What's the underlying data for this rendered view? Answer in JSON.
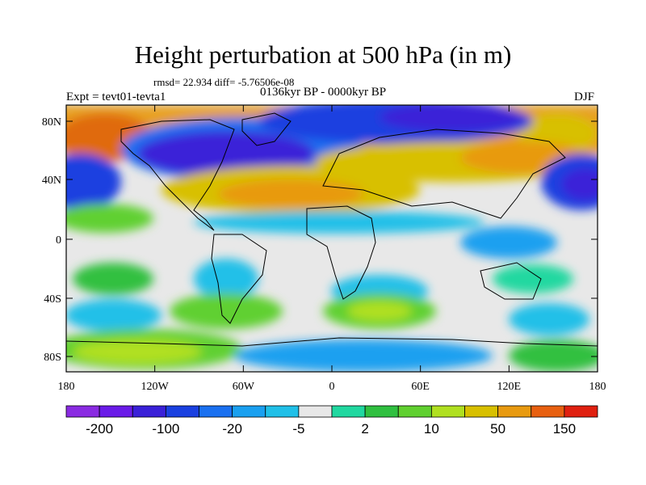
{
  "title": "Height perturbation at 500 hPa (in m)",
  "stats_line": "rmsd= 22.934  diff= -5.76506e-08",
  "period": "0136kyr BP - 0000kyr BP",
  "experiment": "Expt = tevt01-tevta1",
  "season": "DJF",
  "lat_labels": [
    "80N",
    "40N",
    "0",
    "40S",
    "80S"
  ],
  "lon_labels": [
    "180",
    "120W",
    "60W",
    "0",
    "60E",
    "120E",
    "180"
  ],
  "colorbar": {
    "colors": [
      "#8a2be2",
      "#6a1be8",
      "#3a20d8",
      "#1a40e0",
      "#1a70f0",
      "#1aa0f0",
      "#20c0e8",
      "#e8e8e8",
      "#20d8a0",
      "#30c040",
      "#60d030",
      "#b0e020",
      "#d8c000",
      "#e89a10",
      "#e86010",
      "#e02010"
    ],
    "tick_labels": [
      "-200",
      "-100",
      "-20",
      "-5",
      "2",
      "10",
      "50",
      "150"
    ]
  }
}
